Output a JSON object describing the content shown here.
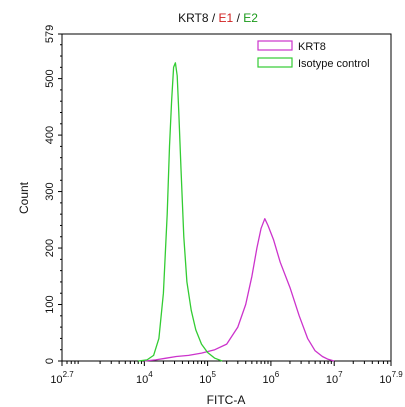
{
  "chart_data": {
    "type": "line",
    "title_parts": [
      {
        "text": "KRT8",
        "color": "#111111"
      },
      {
        "text": " / ",
        "color": "#111111"
      },
      {
        "text": "E1",
        "color": "#d02020"
      },
      {
        "text": " / ",
        "color": "#111111"
      },
      {
        "text": "E2",
        "color": "#1a9a1a"
      }
    ],
    "xlabel": "FITC-A",
    "ylabel": "Count",
    "x_scale": "log",
    "xlim": [
      500,
      79000000
    ],
    "ylim": [
      0,
      579
    ],
    "x_ticks": [
      {
        "value": 500,
        "base": "10",
        "exp": "2.7"
      },
      {
        "value": 10000,
        "base": "10",
        "exp": "4"
      },
      {
        "value": 100000,
        "base": "10",
        "exp": "5"
      },
      {
        "value": 1000000,
        "base": "10",
        "exp": "6"
      },
      {
        "value": 10000000,
        "base": "10",
        "exp": "7"
      },
      {
        "value": 79000000,
        "base": "10",
        "exp": "7.9"
      }
    ],
    "y_ticks": [
      0,
      100,
      200,
      300,
      400,
      500,
      579
    ],
    "legend_position": "top-right",
    "series": [
      {
        "name": "KRT8",
        "color": "#cc33cc",
        "x": [
          10000,
          15000,
          22000,
          32000,
          50000,
          80000,
          130000,
          200000,
          300000,
          400000,
          500000,
          600000,
          700000,
          800000,
          900000,
          1100000,
          1400000,
          2000000,
          2800000,
          3800000,
          5000000,
          6500000,
          8000000,
          10000000
        ],
        "y": [
          0,
          2,
          5,
          8,
          10,
          14,
          20,
          30,
          60,
          100,
          150,
          200,
          235,
          252,
          240,
          215,
          175,
          130,
          80,
          40,
          18,
          8,
          3,
          0
        ]
      },
      {
        "name": "Isotype control",
        "color": "#33cc33",
        "x": [
          8000,
          11000,
          14000,
          17000,
          20000,
          23000,
          25000,
          27000,
          29000,
          31000,
          33000,
          35000,
          38000,
          42000,
          47000,
          55000,
          65000,
          80000,
          100000,
          130000,
          170000
        ],
        "y": [
          0,
          2,
          10,
          40,
          120,
          260,
          380,
          460,
          520,
          528,
          505,
          440,
          340,
          220,
          140,
          90,
          55,
          30,
          15,
          5,
          0
        ]
      }
    ]
  }
}
